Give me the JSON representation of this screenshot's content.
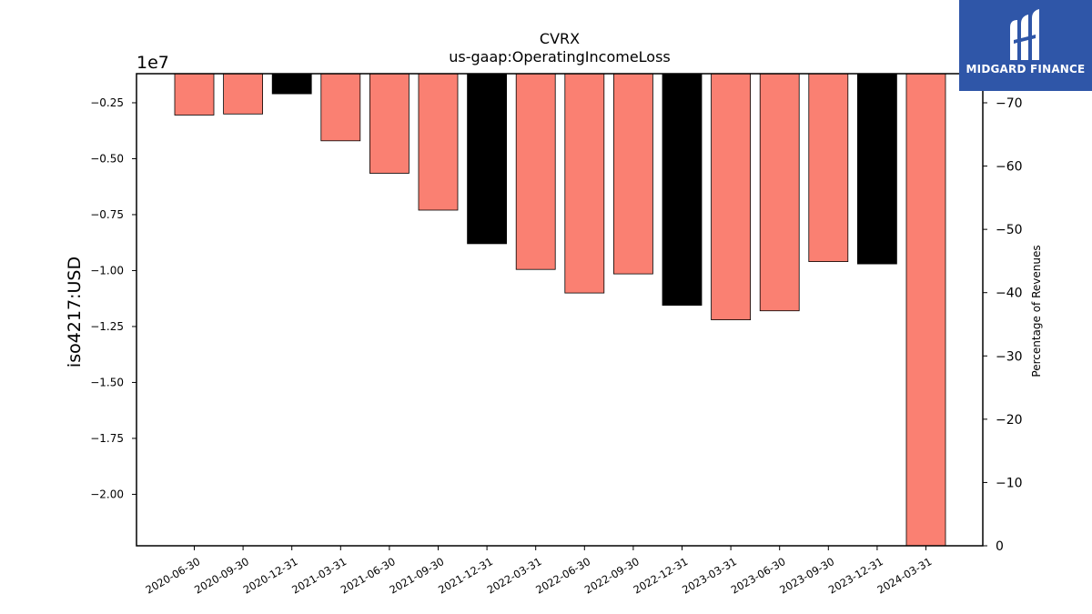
{
  "chart_data": {
    "type": "bar",
    "title": "CVRX",
    "subtitle": "us-gaap:OperatingIncomeLoss",
    "ylabel": "iso4217:USD",
    "y2label": "Percentage of Revenues",
    "scale_note": "1e7",
    "categories": [
      "2020-06-30",
      "2020-09-30",
      "2020-12-31",
      "2021-03-31",
      "2021-06-30",
      "2021-09-30",
      "2021-12-31",
      "2022-03-31",
      "2022-06-30",
      "2022-09-30",
      "2022-12-31",
      "2023-03-31",
      "2023-06-30",
      "2023-09-30",
      "2023-12-31",
      "2024-03-31"
    ],
    "values": [
      -3050000,
      -3000000,
      -2100000,
      -4200000,
      -5650000,
      -7300000,
      -8800000,
      -9950000,
      -11000000,
      -10150000,
      -11550000,
      -12200000,
      -11800000,
      -9600000,
      -9700000,
      -22300000
    ],
    "bar_colors": [
      "#fa8072",
      "#fa8072",
      "#000000",
      "#fa8072",
      "#fa8072",
      "#fa8072",
      "#000000",
      "#fa8072",
      "#fa8072",
      "#fa8072",
      "#000000",
      "#fa8072",
      "#fa8072",
      "#fa8072",
      "#000000",
      "#fa8072"
    ],
    "ylim": [
      -22300000,
      -1200000
    ],
    "yticks": [
      -2500000,
      -5000000,
      -7500000,
      -10000000,
      -12500000,
      -15000000,
      -17500000,
      -20000000
    ],
    "ytick_labels": [
      "−0.25",
      "−0.50",
      "−0.75",
      "−1.00",
      "−1.25",
      "−1.50",
      "−1.75",
      "−2.00"
    ],
    "y2lim": [
      0,
      74.6
    ],
    "y2ticks": [
      0,
      10,
      20,
      30,
      40,
      50,
      60,
      70
    ],
    "y2tick_labels": [
      "0",
      "−10",
      "−20",
      "−30",
      "−40",
      "−50",
      "−60",
      "−70"
    ],
    "grid": false
  },
  "logo": {
    "text": "MIDGARD FINANCE",
    "bg_color": "#2f56a8"
  }
}
